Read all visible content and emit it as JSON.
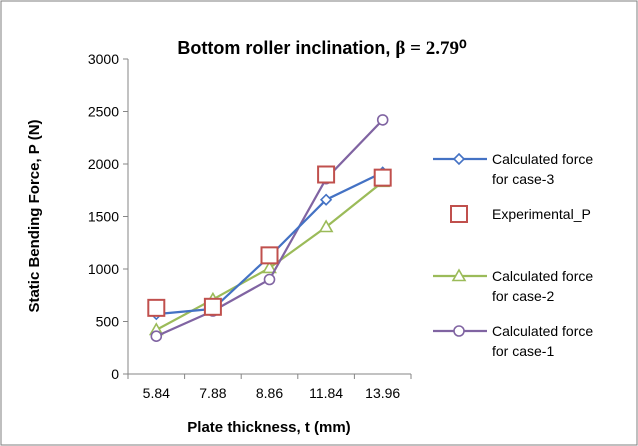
{
  "chart_data": {
    "type": "line",
    "title": "Bottom roller inclination, ",
    "title_symbol": "β = 2.79⁰",
    "xlabel": "Plate thickness, t (mm)",
    "ylabel": "Static Bending Force, P (N)",
    "categories": [
      "5.84",
      "7.88",
      "8.86",
      "11.84",
      "13.96"
    ],
    "ylim": [
      0,
      3000
    ],
    "yticks": [
      0,
      500,
      1000,
      1500,
      2000,
      2500,
      3000
    ],
    "grid": false,
    "legend_position": "right",
    "series": [
      {
        "name_lines": [
          "Calculated force",
          "for case-3"
        ],
        "values": [
          570,
          620,
          1120,
          1660,
          1920
        ],
        "color": "#4472c4",
        "marker": "diamond",
        "line": true
      },
      {
        "name_lines": [
          "Experimental_P"
        ],
        "values": [
          630,
          640,
          1130,
          1900,
          1870
        ],
        "color": "#c0504d",
        "marker": "square",
        "line": false
      },
      {
        "name_lines": [
          "Calculated force",
          "for case-2"
        ],
        "values": [
          420,
          710,
          1010,
          1400,
          1830
        ],
        "color": "#9bbb59",
        "marker": "triangle",
        "line": true
      },
      {
        "name_lines": [
          "Calculated force",
          "for case-1"
        ],
        "values": [
          360,
          600,
          900,
          1860,
          2420
        ],
        "color": "#8064a2",
        "marker": "circle",
        "line": true
      }
    ]
  }
}
